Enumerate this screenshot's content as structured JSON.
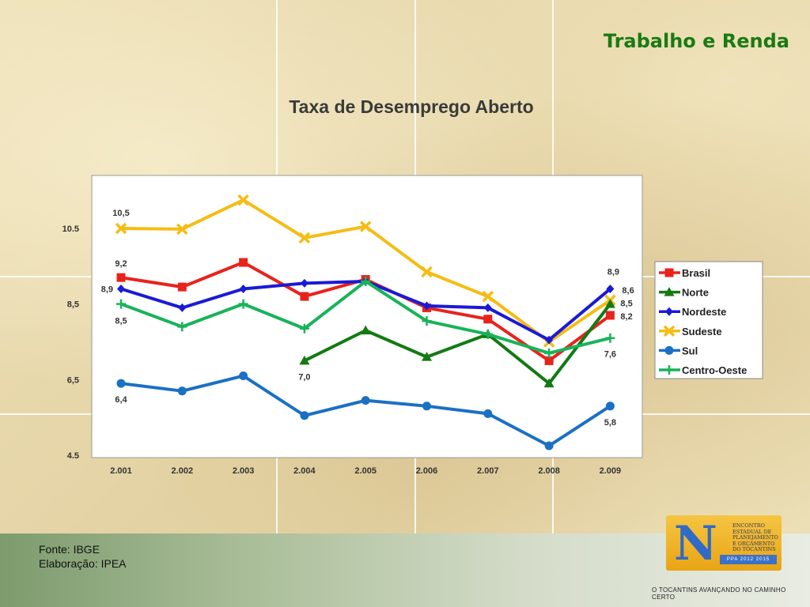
{
  "slide": {
    "title": "Trabalho e Renda",
    "source_line1": "Fonte: IBGE",
    "source_line2": "Elaboração: IPEA",
    "tagline": "O TOCANTINS AVANÇANDO NO CAMINHO CERTO"
  },
  "logo": {
    "lines": [
      "ENCONTRO",
      "ESTADUAL DE",
      "PLANEJAMENTO",
      "E ORÇAMENTO",
      "DO TOCANTINS"
    ],
    "ppa": "PPA 2012 2015"
  },
  "colors": {
    "title_green": "#1a7a14",
    "brasil": "#e8231c",
    "norte": "#137a13",
    "nordeste": "#1a1ad6",
    "sudeste": "#f5bc14",
    "sul": "#1b70c4",
    "centro_oeste": "#19b35a"
  },
  "chart_data": {
    "type": "line",
    "title": "Taxa de Desemprego Aberto",
    "x": [
      "2.001",
      "2.002",
      "2.003",
      "2.004",
      "2.005",
      "2.006",
      "2.007",
      "2.008",
      "2.009"
    ],
    "yticks": [
      "4.5",
      "6,5",
      "8,5",
      "10.5"
    ],
    "ylim": [
      4.5,
      11.9
    ],
    "grid": false,
    "legend_position": "right",
    "series": [
      {
        "name": "Brasil",
        "marker": "square",
        "color": "#e8231c",
        "values": [
          9.2,
          8.95,
          9.6,
          8.7,
          9.15,
          8.4,
          8.1,
          7.0,
          8.2
        ]
      },
      {
        "name": "Norte",
        "marker": "triangle",
        "color": "#137a13",
        "values": [
          null,
          null,
          null,
          7.0,
          7.8,
          7.1,
          7.7,
          6.4,
          8.5
        ]
      },
      {
        "name": "Nordeste",
        "marker": "diamond",
        "color": "#1a1ad6",
        "values": [
          8.9,
          8.4,
          8.9,
          9.05,
          9.1,
          8.45,
          8.4,
          7.55,
          8.9
        ]
      },
      {
        "name": "Sudeste",
        "marker": "x",
        "color": "#f5bc14",
        "values": [
          10.5,
          10.48,
          11.25,
          10.25,
          10.55,
          9.35,
          8.7,
          7.5,
          8.6
        ]
      },
      {
        "name": "Sul",
        "marker": "circle",
        "color": "#1b70c4",
        "values": [
          6.4,
          6.2,
          6.6,
          5.55,
          5.95,
          5.8,
          5.6,
          4.75,
          5.8
        ]
      },
      {
        "name": "Centro-Oeste",
        "marker": "plus",
        "color": "#19b35a",
        "values": [
          8.5,
          7.9,
          8.5,
          7.85,
          9.1,
          8.05,
          7.7,
          7.2,
          7.6
        ]
      }
    ],
    "annotations": [
      {
        "text": "10,5",
        "x": "2.001",
        "series": "Sudeste"
      },
      {
        "text": "9,2",
        "x": "2.001",
        "series": "Brasil"
      },
      {
        "text": "8,9",
        "x": "2.001",
        "series": "Nordeste"
      },
      {
        "text": "8,5",
        "x": "2.001",
        "series": "Centro-Oeste"
      },
      {
        "text": "6,4",
        "x": "2.001",
        "series": "Sul"
      },
      {
        "text": "7,0",
        "x": "2.004",
        "series": "Norte"
      },
      {
        "text": "8,9",
        "x": "2.009",
        "series": "Nordeste"
      },
      {
        "text": "8,6",
        "x": "2.009",
        "series": "Sudeste"
      },
      {
        "text": "8,5",
        "x": "2.009",
        "series": "Norte"
      },
      {
        "text": "8,2",
        "x": "2.009",
        "series": "Brasil"
      },
      {
        "text": "7,6",
        "x": "2.009",
        "series": "Centro-Oeste"
      },
      {
        "text": "5,8",
        "x": "2.009",
        "series": "Sul"
      }
    ]
  }
}
